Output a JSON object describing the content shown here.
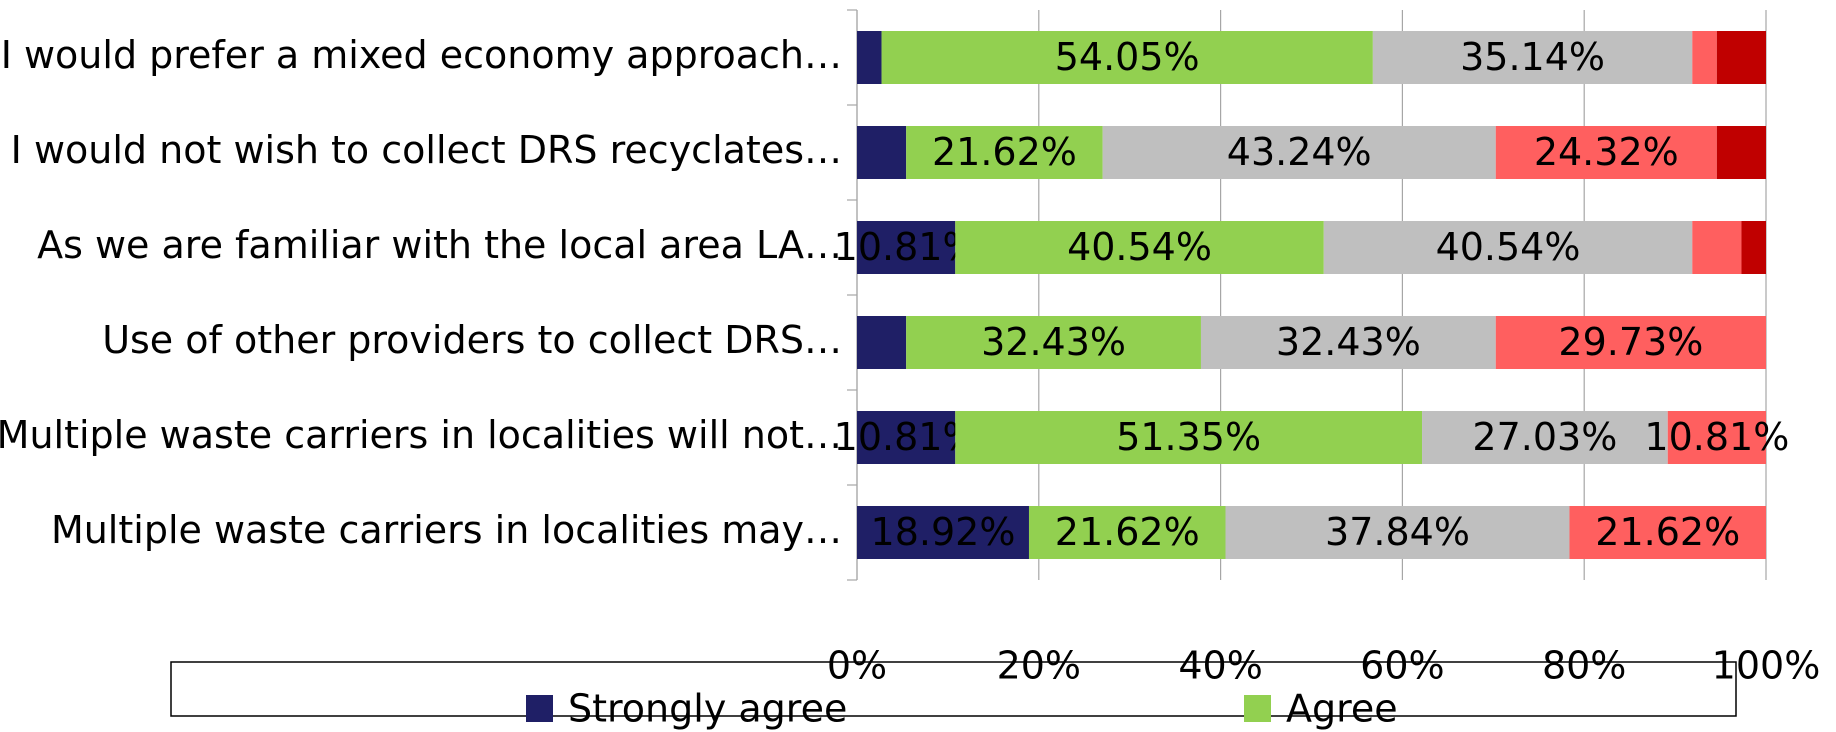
{
  "chart_data": {
    "type": "stacked-bar-horizontal",
    "categories": [
      "I would prefer a mixed economy approach…",
      "I would not wish to collect DRS recyclates…",
      "As we are familiar with the local area LA…",
      "Use of other providers to collect DRS…",
      "Multiple waste carriers in localities will not…",
      "Multiple waste carriers in localities may…"
    ],
    "series": [
      {
        "name": "Strongly agree",
        "color": "#1f1f66",
        "values": [
          2.7,
          5.41,
          10.81,
          5.41,
          10.81,
          18.92
        ],
        "value_labels": [
          null,
          null,
          "10.81%",
          null,
          "10.81%",
          "18.92%"
        ]
      },
      {
        "name": "Agree",
        "color": "#92d050",
        "values": [
          54.05,
          21.62,
          40.54,
          32.43,
          51.35,
          21.62
        ],
        "value_labels": [
          "54.05%",
          "21.62%",
          "40.54%",
          "32.43%",
          "51.35%",
          "21.62%"
        ]
      },
      {
        "color": "#bfbfbf",
        "values": [
          35.14,
          43.24,
          40.54,
          32.43,
          27.03,
          37.84
        ],
        "value_labels": [
          "35.14%",
          "43.24%",
          "40.54%",
          "32.43%",
          "27.03%",
          "37.84%"
        ]
      },
      {
        "color": "#ff5f5f",
        "values": [
          2.7,
          24.32,
          5.41,
          29.73,
          10.81,
          21.62
        ],
        "value_labels": [
          null,
          "24.32%",
          null,
          "29.73%",
          "10.81%",
          "21.62%"
        ]
      },
      {
        "color": "#c00000",
        "values": [
          5.41,
          5.41,
          2.7,
          0,
          0,
          0
        ],
        "value_labels": [
          null,
          null,
          null,
          null,
          null,
          null
        ]
      }
    ],
    "xlim": [
      0,
      100
    ],
    "xticks": [
      {
        "value": 0,
        "label": "0%"
      },
      {
        "value": 20,
        "label": "20%"
      },
      {
        "value": 40,
        "label": "40%"
      },
      {
        "value": 60,
        "label": "60%"
      },
      {
        "value": 80,
        "label": "80%"
      },
      {
        "value": 100,
        "label": "100%"
      }
    ],
    "grid": true
  }
}
